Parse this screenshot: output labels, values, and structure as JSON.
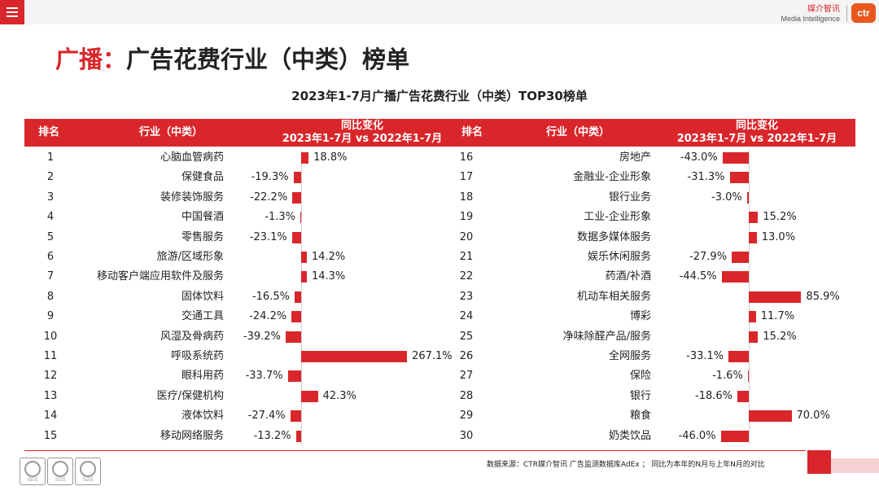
{
  "header": {
    "brand_cn": "媒介智讯",
    "brand_en": "Media Intelligence",
    "logo_text": "ctr"
  },
  "page": {
    "title_highlight": "广播：",
    "title_rest": "广告花费行业（中类）榜单",
    "source_note": "数据来源：CTR媒介智讯 广告监测数据库AdEx ； 同比为本年的N月与上年N月的对比"
  },
  "seals": [
    {
      "label": "SGS"
    },
    {
      "label": "SGS"
    },
    {
      "label": "SGS"
    }
  ],
  "table": {
    "col_rank": "排名",
    "col_industry": "行业（中类）",
    "col_change_line1": "同比变化",
    "col_change_line2": "2023年1-7月 vs 2022年1-7月"
  },
  "colors": {
    "accent": "#d9262a",
    "brand_orange": "#e8581c"
  },
  "chart_data": {
    "type": "bar",
    "orientation": "horizontal",
    "title": "2023年1-7月广播广告花费行业（中类）TOP30榜单",
    "unit": "%",
    "left": [
      {
        "rank": "1",
        "industry": "心脑血管病药",
        "value": 18.8,
        "label": "18.8%"
      },
      {
        "rank": "2",
        "industry": "保健食品",
        "value": -19.3,
        "label": "-19.3%"
      },
      {
        "rank": "3",
        "industry": "装修装饰服务",
        "value": -22.2,
        "label": "-22.2%"
      },
      {
        "rank": "4",
        "industry": "中国餐酒",
        "value": -1.3,
        "label": "-1.3%"
      },
      {
        "rank": "5",
        "industry": "零售服务",
        "value": -23.1,
        "label": "-23.1%"
      },
      {
        "rank": "6",
        "industry": "旅游/区域形象",
        "value": 14.2,
        "label": "14.2%"
      },
      {
        "rank": "7",
        "industry": "移动客户端应用软件及服务",
        "value": 14.3,
        "label": "14.3%"
      },
      {
        "rank": "8",
        "industry": "固体饮料",
        "value": -16.5,
        "label": "-16.5%"
      },
      {
        "rank": "9",
        "industry": "交通工具",
        "value": -24.2,
        "label": "-24.2%"
      },
      {
        "rank": "10",
        "industry": "风湿及骨病药",
        "value": -39.2,
        "label": "-39.2%"
      },
      {
        "rank": "11",
        "industry": "呼吸系统药",
        "value": 267.1,
        "label": "267.1%"
      },
      {
        "rank": "12",
        "industry": "眼科用药",
        "value": -33.7,
        "label": "-33.7%"
      },
      {
        "rank": "13",
        "industry": "医疗/保健机构",
        "value": 42.3,
        "label": "42.3%"
      },
      {
        "rank": "14",
        "industry": "液体饮料",
        "value": -27.4,
        "label": "-27.4%"
      },
      {
        "rank": "15",
        "industry": "移动网络服务",
        "value": -13.2,
        "label": "-13.2%"
      }
    ],
    "right": [
      {
        "rank": "16",
        "industry": "房地产",
        "value": -43.0,
        "label": "-43.0%"
      },
      {
        "rank": "17",
        "industry": "金融业-企业形象",
        "value": -31.3,
        "label": "-31.3%"
      },
      {
        "rank": "18",
        "industry": "银行业务",
        "value": -3.0,
        "label": "-3.0%"
      },
      {
        "rank": "19",
        "industry": "工业-企业形象",
        "value": 15.2,
        "label": "15.2%"
      },
      {
        "rank": "20",
        "industry": "数据多媒体服务",
        "value": 13.0,
        "label": "13.0%"
      },
      {
        "rank": "21",
        "industry": "娱乐休闲服务",
        "value": -27.9,
        "label": "-27.9%"
      },
      {
        "rank": "22",
        "industry": "药酒/补酒",
        "value": -44.5,
        "label": "-44.5%"
      },
      {
        "rank": "23",
        "industry": "机动车相关服务",
        "value": 85.9,
        "label": "85.9%"
      },
      {
        "rank": "24",
        "industry": "博彩",
        "value": 11.7,
        "label": "11.7%"
      },
      {
        "rank": "25",
        "industry": "净味除醛产品/服务",
        "value": 15.2,
        "label": "15.2%"
      },
      {
        "rank": "26",
        "industry": "全网服务",
        "value": -33.1,
        "label": "-33.1%"
      },
      {
        "rank": "27",
        "industry": "保险",
        "value": -1.6,
        "label": "-1.6%"
      },
      {
        "rank": "28",
        "industry": "银行",
        "value": -18.6,
        "label": "-18.6%"
      },
      {
        "rank": "29",
        "industry": "粮食",
        "value": 70.0,
        "label": "70.0%"
      },
      {
        "rank": "30",
        "industry": "奶类饮品",
        "value": -46.0,
        "label": "-46.0%"
      }
    ]
  }
}
